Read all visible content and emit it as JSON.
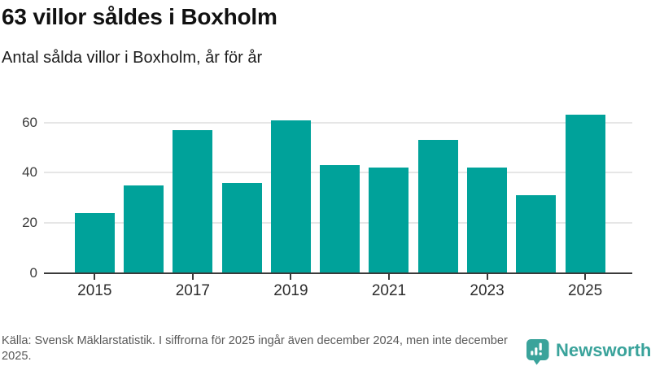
{
  "header": {
    "title": "63 villor såldes i Boxholm",
    "subtitle": "Antal sålda villor i Boxholm, år för år"
  },
  "chart_data": {
    "type": "bar",
    "title": "63 villor såldes i Boxholm",
    "subtitle": "Antal sålda villor i Boxholm, år för år",
    "categories": [
      2015,
      2016,
      2017,
      2018,
      2019,
      2020,
      2021,
      2022,
      2023,
      2024,
      2025
    ],
    "values": [
      24,
      35,
      57,
      36,
      61,
      43,
      42,
      53,
      42,
      31,
      63
    ],
    "xlabel": "",
    "ylabel": "",
    "yticks": [
      0,
      20,
      40,
      60
    ],
    "xticks": [
      2015,
      2017,
      2019,
      2021,
      2023,
      2025
    ],
    "ylim": [
      0,
      64
    ],
    "grid": "horizontal",
    "legend": "none",
    "bar_color": "#00a29a"
  },
  "footer": {
    "source": "Källa: Svensk Mäklarstatistik. I siffrorna för 2025 ingår även december 2024, men inte december 2025.",
    "brand": "Newsworthy"
  },
  "colors": {
    "bar": "#00a29a",
    "logo_teal": "#3aa39b",
    "axis": "#3a3a3a",
    "gridline": "#e6e6e6",
    "title_text": "#111111",
    "footer_text": "#595959"
  }
}
